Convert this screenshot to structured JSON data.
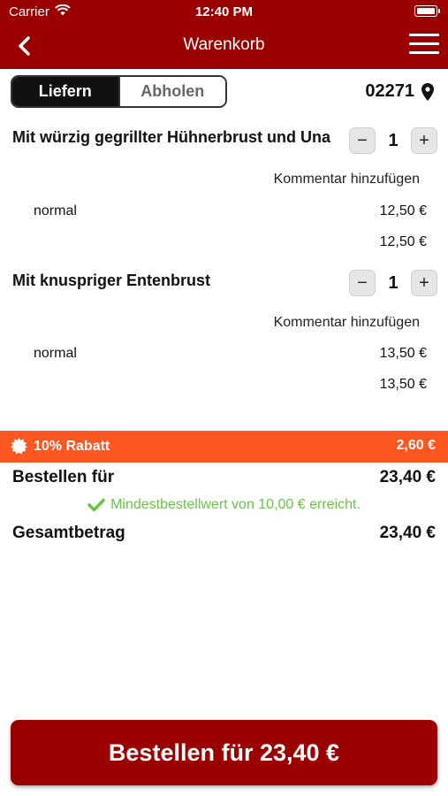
{
  "status": {
    "carrier": "Carrier",
    "time": "12:40 PM"
  },
  "nav": {
    "title": "Warenkorb"
  },
  "mode": {
    "deliver": "Liefern",
    "pickup": "Abholen",
    "selected": "Liefern"
  },
  "location": {
    "zip": "02271"
  },
  "cart": {
    "items": [
      {
        "name": "Mit würzig gegrillter Hühnerbrust und Una",
        "qty": "1",
        "comment": "Kommentar hinzufügen",
        "variant": "normal",
        "variant_price": "12,50 €",
        "total": "12,50 €"
      },
      {
        "name": "Mit knuspriger Entenbrust",
        "qty": "1",
        "comment": "Kommentar hinzufügen",
        "variant": "normal",
        "variant_price": "13,50 €",
        "total": "13,50 €"
      }
    ]
  },
  "discount": {
    "label": "10% Rabatt",
    "value": "2,60 €"
  },
  "summary": {
    "order_for_label": "Bestellen für",
    "order_for_value": "23,40 €",
    "min_order_msg": "Mindestbestellwert von 10,00 € erreicht.",
    "total_label": "Gesamtbetrag",
    "total_value": "23,40 €"
  },
  "cta": {
    "label": "Bestellen für 23,40 €"
  },
  "colors": {
    "brand": "#9b0000",
    "discount": "#ff5722",
    "success": "#6cc24a"
  },
  "icons": [
    "wifi-icon",
    "battery-icon",
    "back-icon",
    "menu-icon",
    "location-pin-icon",
    "minus-icon",
    "plus-icon",
    "discount-badge-icon",
    "check-icon"
  ]
}
